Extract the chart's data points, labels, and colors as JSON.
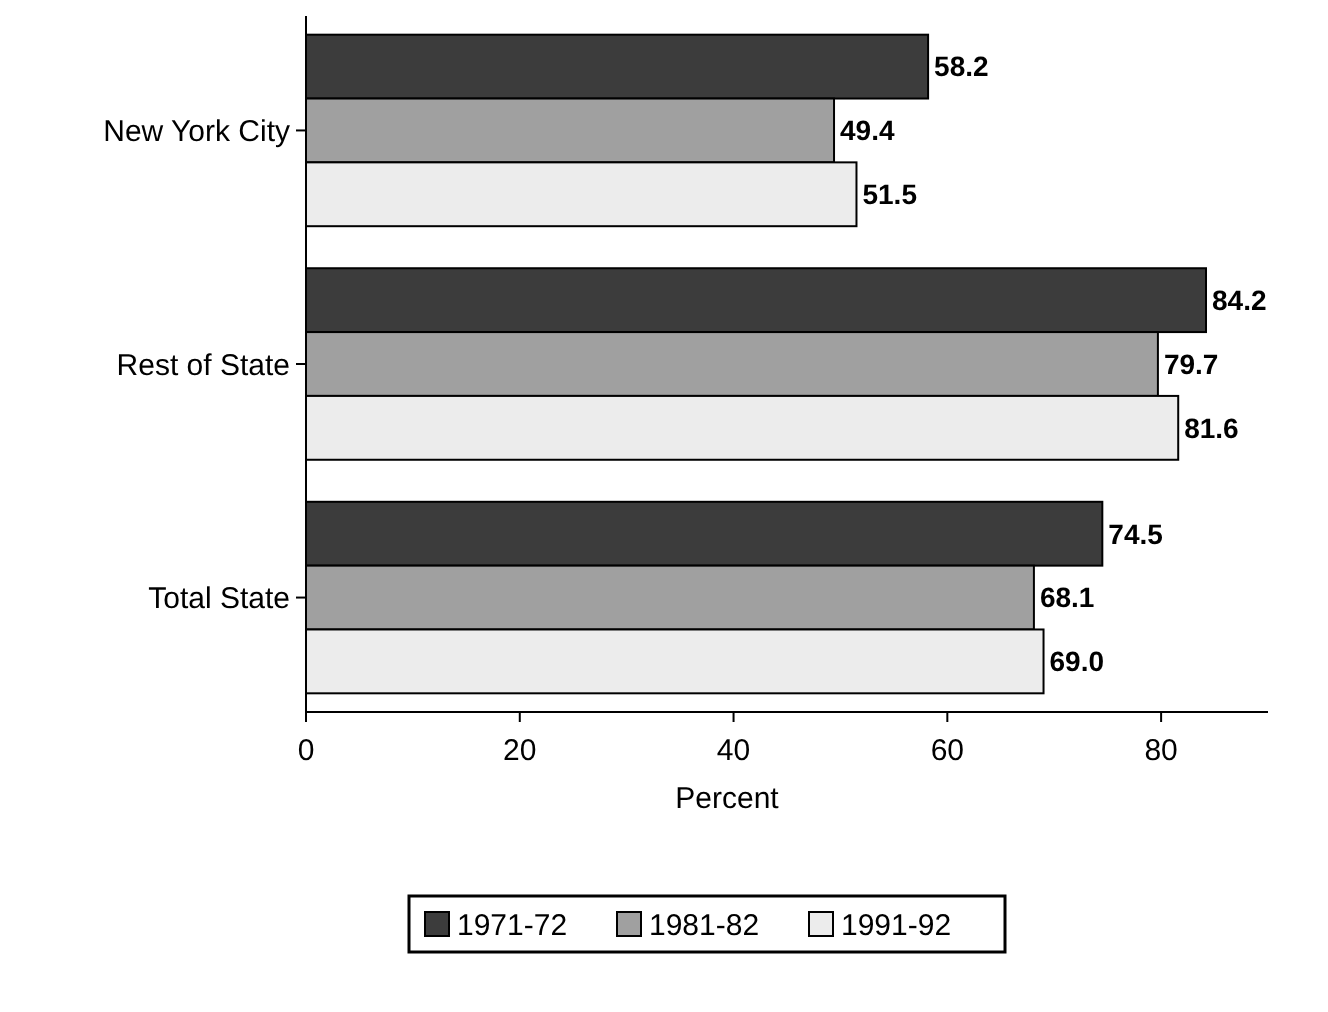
{
  "chart_data": {
    "type": "bar",
    "orientation": "horizontal",
    "xlabel": "Percent",
    "categories": [
      "New York City",
      "Rest of State",
      "Total State"
    ],
    "series": [
      {
        "name": "1971-72",
        "color": "#3c3c3c",
        "values": [
          58.2,
          84.2,
          74.5
        ],
        "value_labels": [
          "58.2",
          "84.2",
          "74.5"
        ]
      },
      {
        "name": "1981-82",
        "color": "#a0a0a0",
        "values": [
          49.4,
          79.7,
          68.1
        ],
        "value_labels": [
          "49.4",
          "79.7",
          "68.1"
        ]
      },
      {
        "name": "1991-92",
        "color": "#ececec",
        "values": [
          51.5,
          81.6,
          69.0
        ],
        "value_labels": [
          "51.5",
          "81.6",
          "69.0"
        ]
      }
    ],
    "xlim": [
      0,
      90
    ],
    "xticks": [
      0,
      20,
      40,
      60,
      80
    ],
    "legend": "bottom",
    "grid": false
  }
}
